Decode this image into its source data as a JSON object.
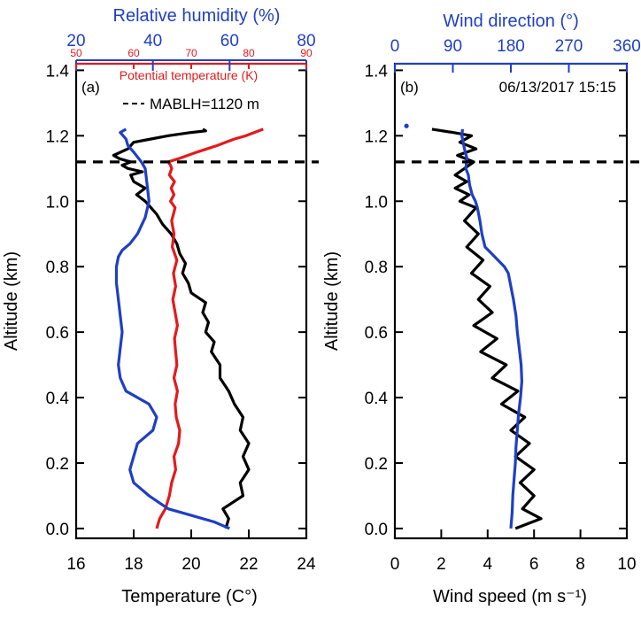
{
  "chart_data": [
    {
      "type": "line",
      "panel_label": "(a)",
      "ylabel": "Altitude (km)",
      "ylim": [
        -0.03,
        1.42
      ],
      "yticks": [
        0.0,
        0.2,
        0.4,
        0.6,
        0.8,
        1.0,
        1.2,
        1.4
      ],
      "ytick_labels": [
        "0.0",
        "0.2",
        "0.4",
        "0.6",
        "0.8",
        "1.0",
        "1.2",
        "1.4"
      ],
      "bottom_axis": {
        "label": "Temperature (C°)",
        "range": [
          16,
          24
        ],
        "ticks": [
          16,
          18,
          20,
          22,
          24
        ],
        "tick_labels": [
          "16",
          "18",
          "20",
          "22",
          "24"
        ]
      },
      "top_axis_outer": {
        "label": "Relative humidity (%)",
        "range": [
          20,
          80
        ],
        "ticks": [
          20,
          40,
          60,
          80
        ],
        "tick_labels": [
          "20",
          "40",
          "60",
          "80"
        ],
        "color": "#1f3fc4"
      },
      "top_axis_inner": {
        "label": "Potential temperature (K)",
        "range": [
          50,
          90
        ],
        "ticks": [
          50,
          60,
          70,
          80,
          90
        ],
        "tick_labels": [
          "50",
          "60",
          "70",
          "80",
          "90"
        ],
        "color": "#e31a1c"
      },
      "annotation": "MABLH=1120 m",
      "mablh_km": 1.12,
      "series": [
        {
          "name": "Temperature",
          "axis": "bottom",
          "color": "#000000",
          "x": [
            21.2,
            21.3,
            21.1,
            21.8,
            21.7,
            22.0,
            21.8,
            22.0,
            21.7,
            21.8,
            21.5,
            21.3,
            21.0,
            21.0,
            20.7,
            20.8,
            20.5,
            20.6,
            20.4,
            20.5,
            20.0,
            19.9,
            19.7,
            19.8,
            19.6,
            19.5,
            19.3,
            19.0,
            18.8,
            18.6,
            18.4,
            18.1,
            18.4,
            18.0,
            17.9,
            18.3,
            17.8,
            17.6,
            17.9,
            17.5,
            17.3,
            17.8,
            18.0,
            18.6,
            19.2,
            20.0,
            20.5,
            20.4
          ],
          "y": [
            0.0,
            0.03,
            0.06,
            0.1,
            0.14,
            0.18,
            0.22,
            0.26,
            0.3,
            0.34,
            0.38,
            0.42,
            0.46,
            0.5,
            0.54,
            0.57,
            0.6,
            0.63,
            0.66,
            0.69,
            0.72,
            0.75,
            0.78,
            0.81,
            0.84,
            0.87,
            0.9,
            0.93,
            0.96,
            0.98,
            1.0,
            1.02,
            1.04,
            1.06,
            1.08,
            1.09,
            1.1,
            1.11,
            1.12,
            1.13,
            1.14,
            1.16,
            1.18,
            1.19,
            1.2,
            1.21,
            1.215,
            1.22
          ]
        },
        {
          "name": "Potential temperature",
          "axis": "top_inner",
          "color": "#e31a1c",
          "x": [
            64.0,
            64.5,
            65.5,
            66.2,
            66.6,
            67.3,
            67.0,
            67.8,
            68.0,
            67.4,
            67.2,
            67.6,
            67.0,
            67.5,
            67.3,
            67.1,
            67.6,
            67.2,
            66.8,
            67.3,
            66.9,
            67.5,
            66.7,
            67.0,
            66.6,
            67.2,
            66.4,
            67.0,
            66.5,
            67.1,
            66.2,
            66.6,
            66.4,
            66.0,
            67.8,
            71.0,
            74.5,
            77.5,
            79.5,
            82.5
          ],
          "y": [
            0.0,
            0.03,
            0.06,
            0.1,
            0.14,
            0.18,
            0.22,
            0.26,
            0.3,
            0.34,
            0.38,
            0.42,
            0.46,
            0.5,
            0.54,
            0.58,
            0.62,
            0.66,
            0.7,
            0.74,
            0.78,
            0.82,
            0.86,
            0.9,
            0.94,
            0.98,
            1.0,
            1.02,
            1.04,
            1.06,
            1.08,
            1.1,
            1.11,
            1.12,
            1.13,
            1.15,
            1.17,
            1.19,
            1.2,
            1.22
          ]
        },
        {
          "name": "Relative humidity",
          "axis": "top_outer",
          "color": "#1f3fc4",
          "x": [
            60.0,
            56.0,
            50.0,
            44.0,
            39.0,
            35.0,
            34.0,
            35.0,
            36.0,
            40.0,
            41.0,
            39.0,
            33.0,
            31.5,
            31.0,
            31.5,
            32.0,
            31.5,
            31.0,
            30.5,
            30.5,
            31.0,
            32.0,
            34.0,
            36.0,
            38.0,
            39.0,
            38.5,
            38.0,
            37.0,
            35.0,
            33.5,
            33.0,
            31.5,
            33.0
          ],
          "y": [
            0.0,
            0.02,
            0.04,
            0.06,
            0.1,
            0.14,
            0.18,
            0.22,
            0.26,
            0.3,
            0.34,
            0.38,
            0.42,
            0.46,
            0.5,
            0.55,
            0.6,
            0.65,
            0.7,
            0.75,
            0.8,
            0.83,
            0.85,
            0.87,
            0.9,
            0.95,
            1.0,
            1.05,
            1.1,
            1.12,
            1.15,
            1.17,
            1.19,
            1.21,
            1.22
          ]
        }
      ]
    },
    {
      "type": "line",
      "panel_label": "(b)",
      "timestamp": "06/13/2017 15:15",
      "ylabel": "Altitude (km)",
      "ylim": [
        -0.03,
        1.42
      ],
      "yticks": [
        0.0,
        0.2,
        0.4,
        0.6,
        0.8,
        1.0,
        1.2,
        1.4
      ],
      "ytick_labels": [
        "0.0",
        "0.2",
        "0.4",
        "0.6",
        "0.8",
        "1.0",
        "1.2",
        "1.4"
      ],
      "bottom_axis": {
        "label": "Wind speed (m s⁻¹)",
        "range": [
          0,
          10
        ],
        "ticks": [
          0,
          2,
          4,
          6,
          8,
          10
        ],
        "tick_labels": [
          "0",
          "2",
          "4",
          "6",
          "8",
          "10"
        ]
      },
      "top_axis": {
        "label": "Wind direction (°)",
        "range": [
          0,
          360
        ],
        "ticks": [
          0,
          90,
          180,
          270,
          360
        ],
        "tick_labels": [
          "0",
          "90",
          "180",
          "270",
          "360"
        ],
        "color": "#1f3fc4"
      },
      "mablh_km": 1.12,
      "series": [
        {
          "name": "Wind speed",
          "axis": "bottom",
          "color": "#000000",
          "x": [
            5.2,
            6.3,
            5.5,
            6.0,
            5.4,
            6.0,
            5.2,
            5.8,
            5.0,
            5.6,
            4.6,
            5.3,
            4.2,
            4.8,
            3.7,
            4.4,
            3.4,
            4.2,
            3.6,
            4.1,
            3.3,
            3.8,
            3.1,
            3.6,
            3.0,
            3.5,
            2.8,
            3.2,
            2.6,
            3.1,
            2.6,
            3.0,
            3.4,
            2.7,
            3.5,
            2.8,
            3.3,
            2.5,
            1.6
          ],
          "y": [
            0.0,
            0.03,
            0.06,
            0.1,
            0.14,
            0.18,
            0.22,
            0.26,
            0.3,
            0.34,
            0.38,
            0.42,
            0.46,
            0.5,
            0.54,
            0.58,
            0.62,
            0.66,
            0.7,
            0.74,
            0.78,
            0.82,
            0.86,
            0.9,
            0.94,
            0.98,
            1.0,
            1.02,
            1.04,
            1.06,
            1.08,
            1.1,
            1.12,
            1.14,
            1.16,
            1.18,
            1.2,
            1.21,
            1.22
          ]
        },
        {
          "name": "Wind direction",
          "axis": "top",
          "color": "#1f3fc4",
          "x": [
            180,
            182,
            183,
            185,
            187,
            188,
            190,
            192,
            195,
            197,
            196,
            193,
            190,
            188,
            184,
            180,
            176,
            170,
            160,
            150,
            140,
            135,
            132,
            128,
            125,
            120,
            116,
            114,
            110,
            112,
            108,
            106,
            104,
            105
          ],
          "y": [
            0.0,
            0.05,
            0.1,
            0.15,
            0.2,
            0.25,
            0.3,
            0.35,
            0.4,
            0.45,
            0.5,
            0.55,
            0.6,
            0.65,
            0.7,
            0.74,
            0.78,
            0.8,
            0.82,
            0.84,
            0.86,
            0.9,
            0.94,
            0.98,
            1.0,
            1.02,
            1.05,
            1.08,
            1.1,
            1.13,
            1.16,
            1.18,
            1.2,
            1.22
          ]
        },
        {
          "name": "Wind direction outlier",
          "axis": "top",
          "color": "#1f3fc4",
          "marker": "dot",
          "x": [
            18
          ],
          "y": [
            1.23
          ]
        }
      ]
    }
  ]
}
